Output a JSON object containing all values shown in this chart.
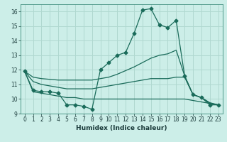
{
  "xlabel": "Humidex (Indice chaleur)",
  "bg_color": "#cceee8",
  "grid_color": "#b0d8d0",
  "line_color": "#1a6b5a",
  "xlim": [
    -0.5,
    23.5
  ],
  "ylim": [
    9,
    16.5
  ],
  "yticks": [
    9,
    10,
    11,
    12,
    13,
    14,
    15,
    16
  ],
  "xticks": [
    0,
    1,
    2,
    3,
    4,
    5,
    6,
    7,
    8,
    9,
    10,
    11,
    12,
    13,
    14,
    15,
    16,
    17,
    18,
    19,
    20,
    21,
    22,
    23
  ],
  "lines": [
    {
      "x": [
        0,
        1,
        2,
        3,
        4,
        5,
        6,
        7,
        8,
        9,
        10,
        11,
        12,
        13,
        14,
        15,
        16,
        17,
        18,
        19,
        20,
        21,
        22,
        23
      ],
      "y": [
        11.9,
        10.6,
        10.5,
        10.5,
        10.4,
        9.6,
        9.6,
        9.5,
        9.3,
        12.0,
        12.5,
        13.0,
        13.2,
        14.5,
        16.1,
        16.2,
        15.1,
        14.9,
        15.4,
        11.6,
        10.3,
        10.1,
        9.6,
        9.6
      ],
      "marker": "D",
      "markersize": 2.5,
      "lw": 0.9
    },
    {
      "x": [
        0,
        1,
        2,
        3,
        4,
        5,
        6,
        7,
        8,
        9,
        10,
        11,
        12,
        13,
        14,
        15,
        16,
        17,
        18,
        19,
        20,
        21,
        22,
        23
      ],
      "y": [
        11.9,
        11.5,
        11.4,
        11.35,
        11.3,
        11.3,
        11.3,
        11.3,
        11.3,
        11.4,
        11.5,
        11.7,
        11.95,
        12.2,
        12.5,
        12.8,
        13.0,
        13.1,
        13.35,
        11.6,
        10.3,
        10.1,
        9.7,
        9.6
      ],
      "marker": null,
      "lw": 0.9
    },
    {
      "x": [
        0,
        1,
        2,
        3,
        4,
        5,
        6,
        7,
        8,
        9,
        10,
        11,
        12,
        13,
        14,
        15,
        16,
        17,
        18,
        19,
        20,
        21,
        22,
        23
      ],
      "y": [
        11.9,
        11.2,
        11.0,
        10.9,
        10.8,
        10.7,
        10.7,
        10.7,
        10.7,
        10.8,
        10.9,
        11.0,
        11.1,
        11.2,
        11.3,
        11.4,
        11.4,
        11.4,
        11.5,
        11.5,
        10.3,
        10.1,
        9.75,
        9.6
      ],
      "marker": null,
      "lw": 0.9
    },
    {
      "x": [
        0,
        1,
        2,
        3,
        4,
        5,
        6,
        7,
        8,
        9,
        10,
        11,
        12,
        13,
        14,
        15,
        16,
        17,
        18,
        19,
        20,
        21,
        22,
        23
      ],
      "y": [
        11.9,
        10.5,
        10.4,
        10.3,
        10.2,
        10.1,
        10.1,
        10.0,
        10.0,
        10.0,
        10.0,
        10.0,
        10.0,
        10.0,
        10.0,
        10.0,
        10.0,
        10.0,
        10.0,
        10.0,
        9.9,
        9.8,
        9.7,
        9.6
      ],
      "marker": null,
      "lw": 0.9
    }
  ]
}
